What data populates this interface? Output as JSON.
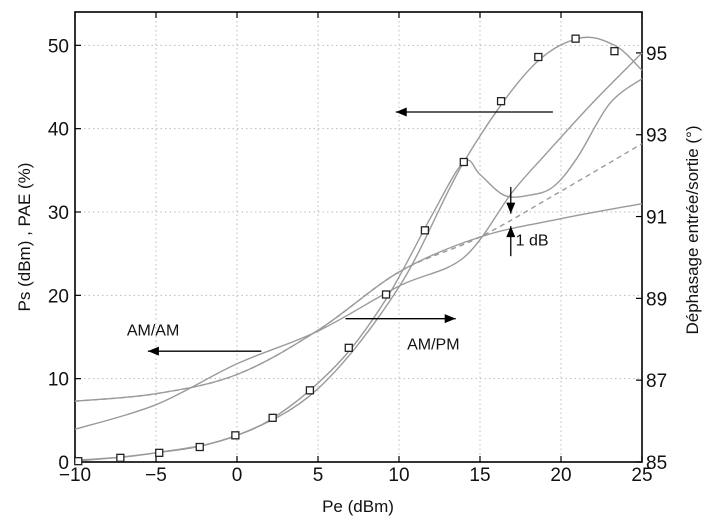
{
  "chart_data": {
    "type": "line",
    "xlabel": "Pe (dBm)",
    "ylabel": "Ps (dBm) , PAE (%)",
    "y2label": "Déphasage entrée/sortie (°)",
    "xlim": [
      -10,
      25
    ],
    "ylim": [
      0,
      54
    ],
    "y2lim": [
      85,
      96
    ],
    "x_ticks": [
      -10,
      -5,
      0,
      5,
      10,
      15,
      20,
      25
    ],
    "y_ticks": [
      0,
      10,
      20,
      30,
      40,
      50
    ],
    "y2_ticks": [
      85,
      87,
      89,
      91,
      93,
      95
    ],
    "x_tick_labels": [
      "−10",
      "−5",
      "0",
      "5",
      "10",
      "15",
      "20",
      "25"
    ],
    "y_tick_labels": [
      "0",
      "10",
      "20",
      "30",
      "40",
      "50"
    ],
    "y2_tick_labels": [
      "85",
      "87",
      "89",
      "91",
      "93",
      "95"
    ],
    "grid": true,
    "series": [
      {
        "key": "ps",
        "axis": "left",
        "style": "solid",
        "x": [
          -10,
          -5,
          0,
          5,
          10,
          15,
          20,
          25
        ],
        "y": [
          7.3,
          8.2,
          10.5,
          15.8,
          22.8,
          27.0,
          29.2,
          31.0
        ]
      },
      {
        "key": "ps_linear",
        "axis": "left",
        "style": "dashed",
        "x": [
          -10,
          -5,
          0,
          5,
          10,
          15,
          20,
          25
        ],
        "y": [
          7.3,
          8.2,
          10.5,
          15.8,
          22.8,
          27.0,
          32.5,
          38.2
        ]
      },
      {
        "key": "phase",
        "axis": "right",
        "style": "solid",
        "x": [
          -10,
          -5,
          0,
          5,
          10,
          14,
          17,
          19,
          22,
          25
        ],
        "y": [
          85.8,
          86.4,
          87.4,
          88.2,
          89.3,
          90.0,
          91.6,
          92.5,
          93.8,
          95.0
        ]
      },
      {
        "key": "pae",
        "axis": "left",
        "style": "solid",
        "x": [
          -10,
          -7,
          -5,
          -2.5,
          0,
          2,
          4.5,
          7,
          9.5,
          12,
          14,
          15,
          16.5,
          18,
          19.5,
          21,
          23,
          25
        ],
        "y": [
          0.2,
          0.6,
          1.1,
          1.8,
          3.2,
          5.0,
          8.6,
          13.5,
          20.5,
          29.5,
          36.0,
          34.5,
          32.0,
          32.0,
          33.0,
          36.5,
          43.0,
          46.0
        ]
      },
      {
        "key": "pae_markers",
        "axis": "left",
        "style": "markers",
        "x": [
          -9.8,
          -7.2,
          -4.8,
          -2.3,
          -0.1,
          2.2,
          4.5,
          6.9,
          9.2,
          11.6,
          14.0,
          16.3,
          18.6,
          20.9,
          23.3
        ],
        "y": [
          0.1,
          0.5,
          1.1,
          1.8,
          3.2,
          5.3,
          8.6,
          13.7,
          20.1,
          27.8,
          36.0,
          43.3,
          48.6,
          50.8,
          49.3
        ]
      },
      {
        "key": "pae_fit",
        "axis": "left",
        "style": "solid",
        "x": [
          -10,
          -5,
          0,
          5,
          10,
          14,
          18,
          21,
          23.3,
          25
        ],
        "y": [
          0.1,
          1.1,
          3.2,
          8.8,
          21.0,
          36.0,
          47.0,
          50.8,
          50.0,
          47.0
        ]
      }
    ],
    "annotations": [
      {
        "text": "AM/AM",
        "x": -6.8,
        "y": 15.2
      },
      {
        "text": "AM/PM",
        "x": 10.5,
        "y": 13.5
      },
      {
        "text": "1 dB",
        "x": 17.2,
        "y": 26.0
      }
    ],
    "arrows": [
      {
        "x1": 1.5,
        "y1": 13.3,
        "x2": -5.5,
        "y2": 13.3
      },
      {
        "x1": 6.7,
        "y1": 17.2,
        "x2": 13.5,
        "y2": 17.2
      },
      {
        "x1": 19.5,
        "y1": 42.0,
        "x2": 9.8,
        "y2": 42.0
      },
      {
        "x1": 16.9,
        "y1": 33.0,
        "x2": 16.9,
        "y2": 29.8
      },
      {
        "x1": 16.9,
        "y1": 24.7,
        "x2": 16.9,
        "y2": 28.3
      }
    ]
  }
}
